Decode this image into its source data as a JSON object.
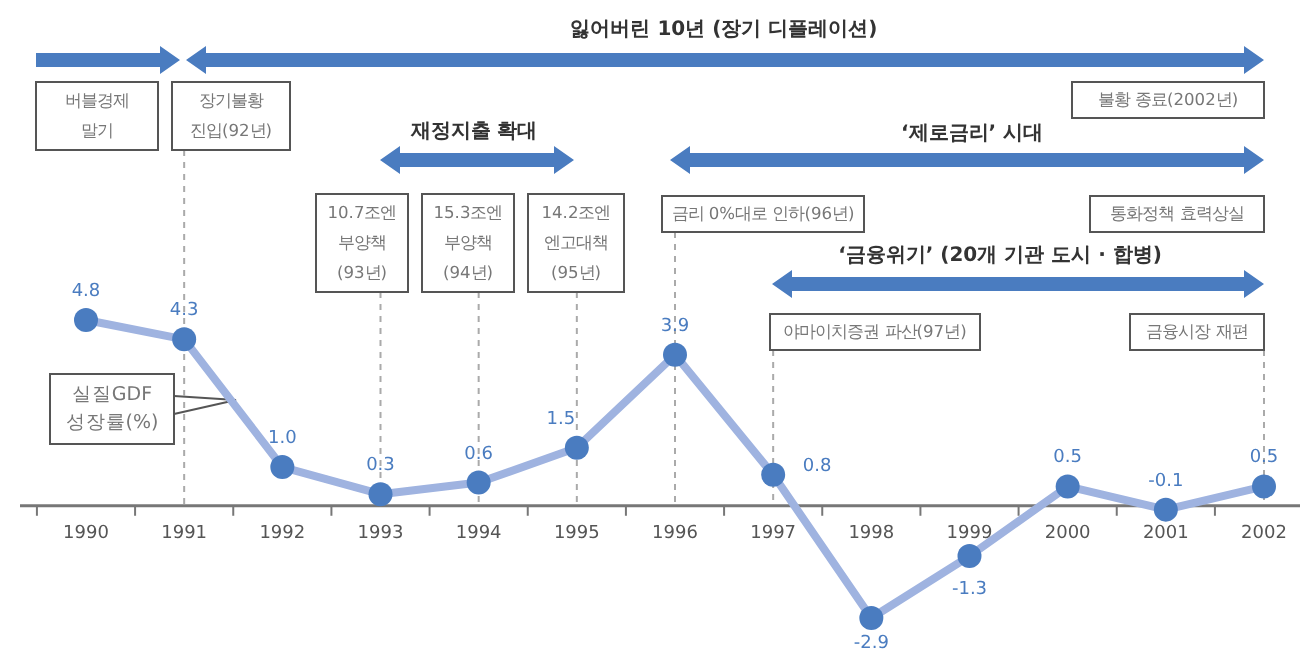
{
  "chart_data": {
    "type": "line",
    "categories": [
      "1990",
      "1991",
      "1992",
      "1993",
      "1994",
      "1995",
      "1996",
      "1997",
      "1998",
      "1999",
      "2000",
      "2001",
      "2002"
    ],
    "series": [
      {
        "name": "실질GDF 성장률(%)",
        "color": "#9fb3e0",
        "values": [
          4.8,
          4.3,
          1.0,
          0.3,
          0.6,
          1.5,
          3.9,
          0.8,
          -2.9,
          -1.3,
          0.5,
          -0.1,
          0.5
        ],
        "value_labels": [
          "4.8",
          "4.3",
          "1.0",
          "0.3",
          "0.6",
          "1.5",
          "3.9",
          "0.8",
          "-2.9",
          "-1.3",
          "0.5",
          "-0.1",
          "0.5"
        ]
      }
    ],
    "marker": "circle",
    "line_style": "solid",
    "ref_lines": [
      {
        "axis": "x",
        "value": "1991",
        "line_style": "dashed",
        "color": "#aaaaaa"
      },
      {
        "axis": "x",
        "value": "1993",
        "line_style": "dashed",
        "color": "#aaaaaa"
      },
      {
        "axis": "x",
        "value": "1994",
        "line_style": "dashed",
        "color": "#aaaaaa"
      },
      {
        "axis": "x",
        "value": "1995",
        "line_style": "dashed",
        "color": "#aaaaaa"
      },
      {
        "axis": "x",
        "value": "1996",
        "line_style": "dashed",
        "color": "#aaaaaa"
      },
      {
        "axis": "x",
        "value": "1997",
        "line_style": "dashed",
        "color": "#aaaaaa"
      },
      {
        "axis": "x",
        "value": "2002",
        "line_style": "dashed",
        "color": "#aaaaaa"
      }
    ],
    "annotations": [
      "잃어버린 10년 (장기 디플레이션)",
      "버블경제\n말기",
      "장기불황\n진입(92년)",
      "재정지출 확대",
      "10.7조엔\n부양책\n(93년)",
      "15.3조엔\n부양책\n(94년)",
      "14.2조엔\n엔고대책\n(95년)",
      "불황 종료(2002년)",
      "‘제로금리’ 시대",
      "금리 0%대로 인하(96년)",
      "통화정책 효력상실",
      "‘금융위기’ (20개 기관 도시 · 합병)",
      "야마이치증권 파산(97년)",
      "금융시장 재편"
    ]
  }
}
